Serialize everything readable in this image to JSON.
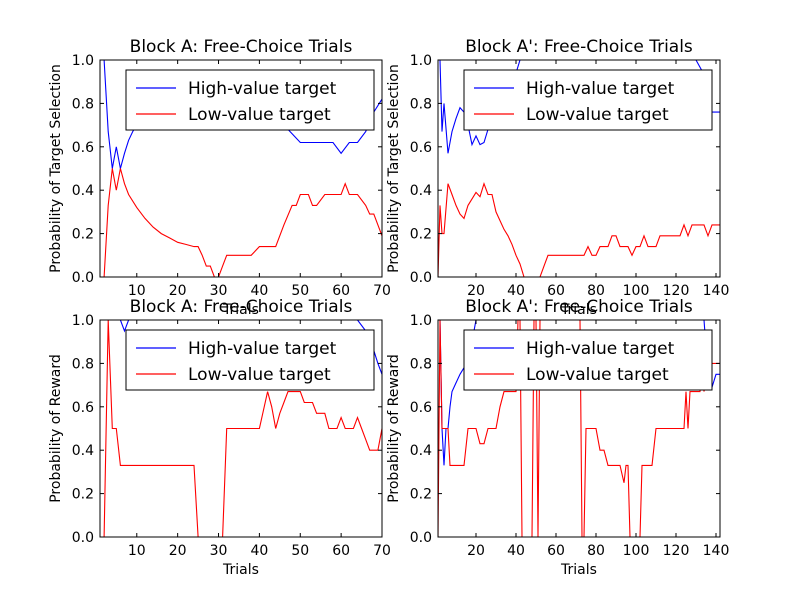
{
  "figure": {
    "title": ""
  },
  "chart_data": [
    {
      "type": "line",
      "title": "Block A: Free-Choice Trials",
      "xlabel": "Trials",
      "ylabel": "Probability of Target Selection",
      "xlim": [
        1,
        70
      ],
      "ylim": [
        0,
        1
      ],
      "xticks": [
        10,
        20,
        30,
        40,
        50,
        60,
        70
      ],
      "yticks": [
        "0.0",
        "0.2",
        "0.4",
        "0.6",
        "0.8",
        "1.0"
      ],
      "legend": {
        "placement": "top-right",
        "entries": [
          "High-value target",
          "Low-value target"
        ]
      },
      "series": [
        {
          "name": "High-value target",
          "color": "#0000ff",
          "x": [
            1,
            2,
            3,
            4,
            5,
            6,
            7,
            8,
            9,
            10,
            12,
            14,
            16,
            18,
            20,
            22,
            24,
            26,
            28,
            30,
            32,
            34,
            36,
            38,
            40,
            42,
            44,
            46,
            48,
            50,
            52,
            54,
            56,
            58,
            60,
            62,
            64,
            66,
            68,
            70
          ],
          "y": [
            1.0,
            1.0,
            0.67,
            0.5,
            0.6,
            0.5,
            0.57,
            0.63,
            0.67,
            0.7,
            0.73,
            0.76,
            0.78,
            0.8,
            0.82,
            0.84,
            0.86,
            0.88,
            0.9,
            0.92,
            0.9,
            0.88,
            0.86,
            0.84,
            0.82,
            0.78,
            0.74,
            0.7,
            0.66,
            0.62,
            0.62,
            0.62,
            0.62,
            0.62,
            0.57,
            0.62,
            0.62,
            0.67,
            0.76,
            0.82
          ]
        },
        {
          "name": "Low-value target",
          "color": "#ff0000",
          "x": [
            1,
            2,
            3,
            4,
            5,
            6,
            7,
            8,
            10,
            12,
            14,
            16,
            18,
            20,
            22,
            24,
            25,
            26,
            27,
            28,
            29,
            30,
            31,
            32,
            34,
            36,
            38,
            40,
            42,
            44,
            46,
            48,
            49,
            50,
            52,
            53,
            54,
            56,
            58,
            60,
            61,
            62,
            64,
            66,
            67,
            68,
            69,
            70
          ],
          "y": [
            0.0,
            0.0,
            0.33,
            0.5,
            0.4,
            0.5,
            0.43,
            0.38,
            0.32,
            0.27,
            0.23,
            0.2,
            0.18,
            0.16,
            0.15,
            0.14,
            0.14,
            0.1,
            0.05,
            0.05,
            0.0,
            0.0,
            0.05,
            0.1,
            0.1,
            0.1,
            0.1,
            0.14,
            0.14,
            0.14,
            0.24,
            0.33,
            0.33,
            0.38,
            0.38,
            0.33,
            0.33,
            0.38,
            0.38,
            0.38,
            0.43,
            0.38,
            0.38,
            0.33,
            0.29,
            0.29,
            0.24,
            0.19
          ]
        }
      ]
    },
    {
      "type": "line",
      "title": "Block A': Free-Choice Trials",
      "xlabel": "Trials",
      "ylabel": "Probability of Target Selection",
      "xlim": [
        1,
        142
      ],
      "ylim": [
        0,
        1
      ],
      "xticks": [
        20,
        40,
        60,
        80,
        100,
        120,
        140
      ],
      "yticks": [
        "0.0",
        "0.2",
        "0.4",
        "0.6",
        "0.8",
        "1.0"
      ],
      "legend": {
        "placement": "top-right",
        "entries": [
          "High-value target",
          "Low-value target"
        ]
      },
      "series": [
        {
          "name": "High-value target",
          "color": "#0000ff",
          "x": [
            1,
            2,
            3,
            4,
            6,
            8,
            10,
            12,
            14,
            16,
            18,
            20,
            22,
            24,
            26,
            28,
            30,
            32,
            34,
            36,
            38,
            40,
            42,
            44,
            46,
            48,
            50,
            52,
            54,
            56,
            58,
            60,
            62,
            64,
            66,
            68,
            70,
            74,
            80,
            90,
            100,
            110,
            120,
            130,
            136,
            138,
            140,
            142
          ],
          "y": [
            1.0,
            1.0,
            0.67,
            0.8,
            0.57,
            0.67,
            0.73,
            0.78,
            0.76,
            0.7,
            0.61,
            0.65,
            0.61,
            0.62,
            0.68,
            0.71,
            0.74,
            0.78,
            0.82,
            0.86,
            0.9,
            0.94,
            1.0,
            1.0,
            1.0,
            1.0,
            1.0,
            1.0,
            1.0,
            1.0,
            1.0,
            1.0,
            1.0,
            1.0,
            1.0,
            1.0,
            1.0,
            1.0,
            1.0,
            1.0,
            1.0,
            1.0,
            1.0,
            1.0,
            0.9,
            0.76,
            0.76,
            0.76
          ]
        },
        {
          "name": "Low-value target",
          "color": "#ff0000",
          "x": [
            1,
            2,
            3,
            4,
            6,
            8,
            10,
            12,
            14,
            16,
            18,
            20,
            22,
            24,
            26,
            28,
            30,
            32,
            34,
            36,
            38,
            40,
            42,
            44,
            46,
            48,
            50,
            52,
            54,
            56,
            58,
            60,
            62,
            64,
            66,
            68,
            70,
            72,
            74,
            76,
            78,
            80,
            82,
            84,
            86,
            88,
            90,
            92,
            94,
            96,
            98,
            100,
            102,
            104,
            106,
            108,
            110,
            112,
            114,
            116,
            118,
            120,
            122,
            124,
            126,
            128,
            130,
            132,
            134,
            136,
            138,
            140,
            142
          ],
          "y": [
            0.0,
            0.33,
            0.2,
            0.2,
            0.43,
            0.38,
            0.33,
            0.29,
            0.27,
            0.33,
            0.36,
            0.39,
            0.37,
            0.43,
            0.38,
            0.38,
            0.3,
            0.26,
            0.22,
            0.19,
            0.15,
            0.1,
            0.06,
            0.0,
            0.0,
            0.0,
            0.0,
            0.0,
            0.05,
            0.1,
            0.1,
            0.1,
            0.1,
            0.1,
            0.1,
            0.1,
            0.1,
            0.1,
            0.1,
            0.14,
            0.1,
            0.1,
            0.14,
            0.14,
            0.14,
            0.19,
            0.19,
            0.14,
            0.14,
            0.14,
            0.1,
            0.14,
            0.14,
            0.19,
            0.14,
            0.14,
            0.14,
            0.19,
            0.19,
            0.19,
            0.19,
            0.19,
            0.19,
            0.24,
            0.19,
            0.24,
            0.24,
            0.24,
            0.24,
            0.19,
            0.24,
            0.24,
            0.24
          ]
        }
      ]
    },
    {
      "type": "line",
      "title": "Block A: Free-Choice Trials",
      "xlabel": "Trials",
      "ylabel": "Probability of Reward",
      "xlim": [
        1,
        70
      ],
      "ylim": [
        0,
        1
      ],
      "xticks": [
        10,
        20,
        30,
        40,
        50,
        60,
        70
      ],
      "yticks": [
        "0.0",
        "0.2",
        "0.4",
        "0.6",
        "0.8",
        "1.0"
      ],
      "legend": {
        "placement": "top-right",
        "entries": [
          "High-value target",
          "Low-value target"
        ]
      },
      "series": [
        {
          "name": "High-value target",
          "color": "#0000ff",
          "x": [
            1,
            2,
            3,
            4,
            5,
            6,
            7,
            8,
            10,
            20,
            30,
            40,
            50,
            60,
            64,
            66,
            67,
            68,
            69,
            70
          ],
          "y": [
            1.0,
            1.0,
            1.0,
            1.0,
            1.0,
            1.0,
            0.95,
            1.0,
            1.0,
            1.0,
            1.0,
            1.0,
            1.0,
            1.0,
            1.0,
            0.95,
            0.9,
            0.86,
            0.8,
            0.75
          ]
        },
        {
          "name": "Low-value target",
          "color": "#ff0000",
          "x": [
            1,
            2,
            3,
            4,
            5,
            6,
            7,
            8,
            10,
            12,
            14,
            16,
            18,
            20,
            22,
            24,
            25,
            26,
            27,
            28,
            29,
            30,
            31,
            32,
            34,
            36,
            38,
            40,
            42,
            43,
            44,
            45,
            46,
            47,
            48,
            49,
            50,
            51,
            52,
            53,
            54,
            55,
            56,
            57,
            58,
            59,
            60,
            61,
            62,
            63,
            64,
            65,
            66,
            67,
            68,
            69,
            70
          ],
          "y": [
            0.0,
            0.0,
            1.0,
            0.5,
            0.5,
            0.33,
            0.33,
            0.33,
            0.33,
            0.33,
            0.33,
            0.33,
            0.33,
            0.33,
            0.33,
            0.33,
            0.0,
            0.0,
            0.0,
            0.0,
            0.0,
            0.0,
            0.0,
            0.5,
            0.5,
            0.5,
            0.5,
            0.5,
            0.67,
            0.6,
            0.5,
            0.57,
            0.62,
            0.67,
            0.67,
            0.67,
            0.67,
            0.62,
            0.62,
            0.62,
            0.57,
            0.57,
            0.57,
            0.5,
            0.5,
            0.5,
            0.55,
            0.5,
            0.5,
            0.5,
            0.55,
            0.5,
            0.45,
            0.4,
            0.4,
            0.4,
            0.5
          ]
        }
      ]
    },
    {
      "type": "line",
      "title": "Block A': Free-Choice Trials",
      "xlabel": "Trials",
      "ylabel": "Probability of Reward",
      "xlim": [
        1,
        142
      ],
      "ylim": [
        0,
        1
      ],
      "xticks": [
        20,
        40,
        60,
        80,
        100,
        120,
        140
      ],
      "yticks": [
        "0.0",
        "0.2",
        "0.4",
        "0.6",
        "0.8",
        "1.0"
      ],
      "legend": {
        "placement": "top-right",
        "entries": [
          "High-value target",
          "Low-value target"
        ]
      },
      "series": [
        {
          "name": "High-value target",
          "color": "#0000ff",
          "x": [
            1,
            2,
            3,
            4,
            5,
            6,
            7,
            8,
            10,
            12,
            14,
            16,
            20,
            40,
            60,
            80,
            100,
            120,
            130,
            134,
            136,
            138,
            140,
            142
          ],
          "y": [
            1.0,
            1.0,
            0.5,
            0.33,
            0.5,
            0.5,
            0.6,
            0.67,
            0.71,
            0.75,
            0.78,
            0.8,
            1.0,
            1.0,
            1.0,
            1.0,
            1.0,
            1.0,
            1.0,
            1.0,
            0.75,
            0.69,
            0.75,
            0.75
          ]
        },
        {
          "name": "Low-value target",
          "color": "#ff0000",
          "x": [
            1,
            2,
            3,
            4,
            6,
            7,
            8,
            10,
            12,
            14,
            16,
            18,
            20,
            22,
            24,
            26,
            28,
            30,
            32,
            34,
            36,
            38,
            40,
            41,
            42,
            43,
            44,
            45,
            46,
            47,
            48,
            49,
            50,
            51,
            52,
            54,
            56,
            58,
            60,
            62,
            64,
            66,
            68,
            70,
            72,
            73,
            74,
            75,
            76,
            78,
            80,
            82,
            84,
            86,
            88,
            90,
            92,
            94,
            95,
            96,
            97,
            98,
            100,
            102,
            103,
            104,
            106,
            108,
            110,
            112,
            114,
            116,
            118,
            120,
            122,
            124,
            125,
            126,
            127,
            128,
            130,
            132,
            133,
            134,
            136,
            138,
            140,
            142
          ],
          "y": [
            0.0,
            1.0,
            0.5,
            0.5,
            0.5,
            0.33,
            0.33,
            0.33,
            0.33,
            0.33,
            0.5,
            0.5,
            0.5,
            0.43,
            0.43,
            0.5,
            0.5,
            0.5,
            0.6,
            0.67,
            0.67,
            0.67,
            0.67,
            1.0,
            1.0,
            0.0,
            0.0,
            0.0,
            0.0,
            0.0,
            0.0,
            1.0,
            1.0,
            0.0,
            1.0,
            1.0,
            1.0,
            1.0,
            1.0,
            1.0,
            1.0,
            1.0,
            1.0,
            1.0,
            1.0,
            0.0,
            0.0,
            0.5,
            0.5,
            0.5,
            0.5,
            0.4,
            0.4,
            0.33,
            0.33,
            0.33,
            0.33,
            0.25,
            0.33,
            0.33,
            0.0,
            0.0,
            0.0,
            0.0,
            0.33,
            0.33,
            0.33,
            0.33,
            0.5,
            0.5,
            0.5,
            0.5,
            0.5,
            0.5,
            0.5,
            0.5,
            0.67,
            0.5,
            0.67,
            0.67,
            0.67,
            0.67,
            0.8,
            0.67,
            0.8,
            0.8,
            0.8,
            0.8
          ]
        }
      ]
    }
  ]
}
